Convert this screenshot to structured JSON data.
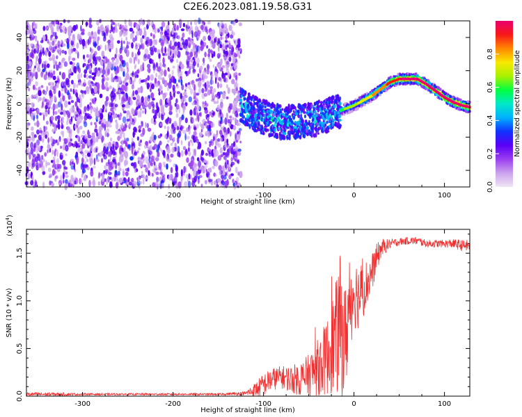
{
  "title": "C2E6.2023.081.19.58.G31",
  "chart_data": [
    {
      "type": "heatmap",
      "xlabel": "Height of straight line (km)",
      "ylabel": "Frequency (Hz)",
      "xlim": [
        -362,
        128
      ],
      "ylim": [
        -50,
        50
      ],
      "x_ticks": [
        -300,
        -200,
        -100,
        0,
        100
      ],
      "y_ticks": [
        -40,
        -20,
        0,
        20,
        40
      ],
      "colorbar": {
        "label": "Normalized spectral amplitude",
        "range": [
          0,
          1
        ],
        "ticks": [
          0.0,
          0.2,
          0.4,
          0.6,
          0.8
        ],
        "colors": [
          "#f0e6f5",
          "#cba3ec",
          "#9b3ff0",
          "#5a00f5",
          "#1030ff",
          "#00b0ff",
          "#00e8c8",
          "#00ff40",
          "#a8f000",
          "#f8e800",
          "#ff8800",
          "#f81818",
          "#e8006e"
        ]
      },
      "trace": {
        "x": [
          -125,
          -110,
          -95,
          -80,
          -65,
          -50,
          -35,
          -20,
          -10,
          0,
          10,
          20,
          30,
          40,
          50,
          60,
          70,
          80,
          90,
          100,
          110,
          120,
          128
        ],
        "y": [
          -1,
          -6,
          -9,
          -11,
          -11,
          -10,
          -8,
          -5,
          -3,
          -1,
          2,
          5,
          9,
          13,
          15,
          15,
          15,
          12,
          8,
          4,
          1,
          -1,
          -2
        ]
      },
      "noise_region": {
        "x": [
          -362,
          -125
        ],
        "y": [
          -50,
          50
        ]
      }
    },
    {
      "type": "line",
      "xlabel": "Height of straight line (km)",
      "ylabel": "SNR (10 * v/v)",
      "y_multiplier_label": "(x10",
      "y_multiplier_exp": "4",
      "xlim": [
        -362,
        128
      ],
      "ylim": [
        0,
        1.75
      ],
      "x_ticks": [
        -300,
        -200,
        -100,
        0,
        100
      ],
      "y_ticks": [
        0.0,
        0.5,
        1.0,
        1.5
      ],
      "series": [
        {
          "color": "#f03030",
          "x": [
            -362,
            -340,
            -300,
            -250,
            -200,
            -150,
            -120,
            -110,
            -100,
            -90,
            -80,
            -70,
            -60,
            -50,
            -40,
            -30,
            -25,
            -20,
            -15,
            -10,
            -5,
            0,
            5,
            10,
            15,
            20,
            25,
            30,
            40,
            50,
            60,
            70,
            80,
            90,
            100,
            110,
            120,
            128
          ],
          "y": [
            0.02,
            0.02,
            0.02,
            0.02,
            0.02,
            0.02,
            0.03,
            0.06,
            0.12,
            0.18,
            0.2,
            0.18,
            0.18,
            0.22,
            0.3,
            0.4,
            0.52,
            0.6,
            0.75,
            0.55,
            0.95,
            1.1,
            1.05,
            1.12,
            1.2,
            1.3,
            1.45,
            1.55,
            1.6,
            1.62,
            1.63,
            1.63,
            1.6,
            1.6,
            1.6,
            1.6,
            1.58,
            1.58
          ],
          "noise_amp": [
            0.02,
            0.02,
            0.01,
            0.01,
            0.01,
            0.01,
            0.02,
            0.08,
            0.12,
            0.12,
            0.12,
            0.14,
            0.18,
            0.22,
            0.3,
            0.4,
            0.5,
            0.6,
            0.75,
            0.6,
            0.5,
            0.4,
            0.35,
            0.3,
            0.25,
            0.2,
            0.15,
            0.1,
            0.05,
            0.04,
            0.04,
            0.04,
            0.04,
            0.04,
            0.04,
            0.05,
            0.06,
            0.06
          ]
        }
      ]
    }
  ]
}
